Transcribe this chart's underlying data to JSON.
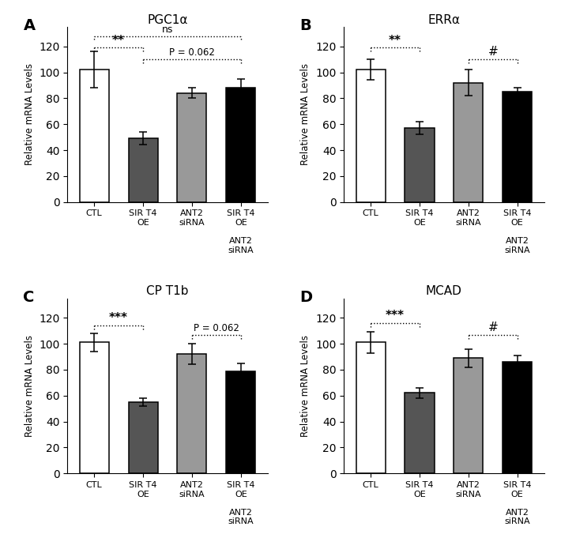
{
  "panels": [
    {
      "label": "A",
      "title": "PGC1α",
      "bars": [
        102,
        49,
        84,
        88
      ],
      "errors": [
        14,
        5,
        4,
        7
      ],
      "colors": [
        "white",
        "#555555",
        "#999999",
        "black"
      ]
    },
    {
      "label": "B",
      "title": "ERRα",
      "bars": [
        102,
        57,
        92,
        85
      ],
      "errors": [
        8,
        5,
        10,
        3
      ],
      "colors": [
        "white",
        "#555555",
        "#999999",
        "black"
      ]
    },
    {
      "label": "C",
      "title": "CP T1b",
      "bars": [
        101,
        55,
        92,
        79
      ],
      "errors": [
        7,
        3,
        8,
        6
      ],
      "colors": [
        "white",
        "#555555",
        "#999999",
        "black"
      ]
    },
    {
      "label": "D",
      "title": "MCAD",
      "bars": [
        101,
        62,
        89,
        86
      ],
      "errors": [
        8,
        4,
        7,
        5
      ],
      "colors": [
        "white",
        "#555555",
        "#999999",
        "black"
      ]
    }
  ],
  "ylabel": "Relative mRNA Levels",
  "ylim": [
    0,
    135
  ],
  "yticks": [
    0,
    20,
    40,
    60,
    80,
    100,
    120
  ],
  "background": "#ffffff",
  "bar_width": 0.6
}
